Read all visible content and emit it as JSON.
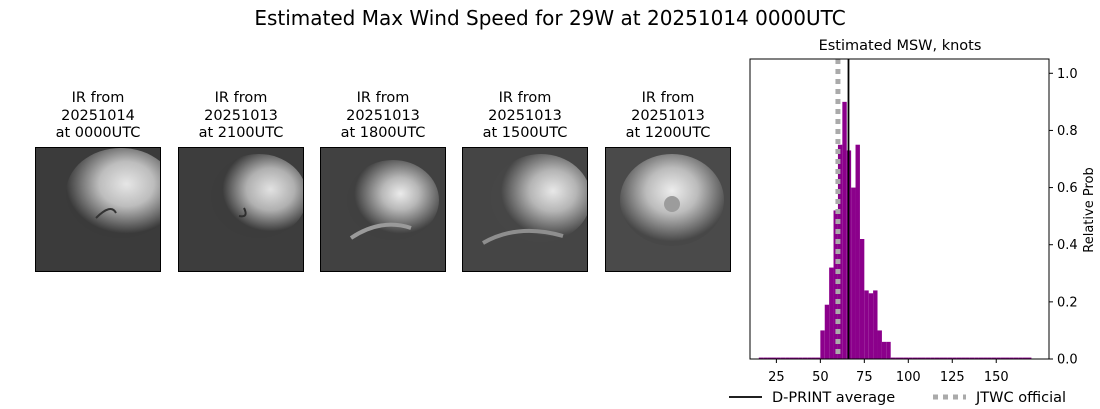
{
  "title": "Estimated Max Wind Speed for 29W at 20251014 0000UTC",
  "ir_panels": [
    {
      "line1": "IR from",
      "line2": "20251014",
      "line3": "at 0000UTC"
    },
    {
      "line1": "IR from",
      "line2": "20251013",
      "line3": "at 2100UTC"
    },
    {
      "line1": "IR from",
      "line2": "20251013",
      "line3": "at 1800UTC"
    },
    {
      "line1": "IR from",
      "line2": "20251013",
      "line3": "at 1500UTC"
    },
    {
      "line1": "IR from",
      "line2": "20251013",
      "line3": "at 1200UTC"
    }
  ],
  "chart_data": {
    "type": "bar",
    "title": "Estimated MSW, knots",
    "xlabel": "",
    "ylabel": "Relative Prob",
    "xlim": [
      10,
      180
    ],
    "ylim": [
      0,
      1.05
    ],
    "x_ticks": [
      25,
      50,
      75,
      100,
      125,
      150
    ],
    "y_ticks": [
      0.0,
      0.2,
      0.4,
      0.6,
      0.8,
      1.0
    ],
    "y_axis_side": "right",
    "bar_color": "#8b008b",
    "bin_width": 2.5,
    "bins": [
      {
        "x": 15,
        "value": 0.005
      },
      {
        "x": 17.5,
        "value": 0.005
      },
      {
        "x": 20,
        "value": 0.005
      },
      {
        "x": 22.5,
        "value": 0.005
      },
      {
        "x": 25,
        "value": 0.005
      },
      {
        "x": 27.5,
        "value": 0.005
      },
      {
        "x": 30,
        "value": 0.005
      },
      {
        "x": 32.5,
        "value": 0.005
      },
      {
        "x": 35,
        "value": 0.005
      },
      {
        "x": 37.5,
        "value": 0.005
      },
      {
        "x": 40,
        "value": 0.005
      },
      {
        "x": 42.5,
        "value": 0.005
      },
      {
        "x": 45,
        "value": 0.005
      },
      {
        "x": 47.5,
        "value": 0.005
      },
      {
        "x": 50,
        "value": 0.1
      },
      {
        "x": 52.5,
        "value": 0.19
      },
      {
        "x": 55,
        "value": 0.32
      },
      {
        "x": 57.5,
        "value": 0.52
      },
      {
        "x": 60,
        "value": 0.75
      },
      {
        "x": 62.5,
        "value": 0.9
      },
      {
        "x": 65,
        "value": 0.73
      },
      {
        "x": 67.5,
        "value": 0.6
      },
      {
        "x": 70,
        "value": 0.75
      },
      {
        "x": 72.5,
        "value": 0.42
      },
      {
        "x": 75,
        "value": 0.24
      },
      {
        "x": 77.5,
        "value": 0.23
      },
      {
        "x": 80,
        "value": 0.24
      },
      {
        "x": 82.5,
        "value": 0.1
      },
      {
        "x": 85,
        "value": 0.06
      },
      {
        "x": 87.5,
        "value": 0.06
      },
      {
        "x": 90,
        "value": 0.005
      },
      {
        "x": 92.5,
        "value": 0.005
      },
      {
        "x": 95,
        "value": 0.005
      },
      {
        "x": 97.5,
        "value": 0.005
      },
      {
        "x": 100,
        "value": 0.005
      },
      {
        "x": 102.5,
        "value": 0.005
      },
      {
        "x": 105,
        "value": 0.005
      },
      {
        "x": 107.5,
        "value": 0.005
      },
      {
        "x": 110,
        "value": 0.005
      },
      {
        "x": 112.5,
        "value": 0.005
      },
      {
        "x": 115,
        "value": 0.005
      },
      {
        "x": 117.5,
        "value": 0.005
      },
      {
        "x": 120,
        "value": 0.005
      },
      {
        "x": 122.5,
        "value": 0.005
      },
      {
        "x": 125,
        "value": 0.005
      },
      {
        "x": 127.5,
        "value": 0.005
      },
      {
        "x": 130,
        "value": 0.005
      },
      {
        "x": 132.5,
        "value": 0.005
      },
      {
        "x": 135,
        "value": 0.005
      },
      {
        "x": 137.5,
        "value": 0.005
      },
      {
        "x": 140,
        "value": 0.005
      },
      {
        "x": 142.5,
        "value": 0.005
      },
      {
        "x": 145,
        "value": 0.005
      },
      {
        "x": 147.5,
        "value": 0.005
      },
      {
        "x": 150,
        "value": 0.005
      },
      {
        "x": 152.5,
        "value": 0.005
      },
      {
        "x": 155,
        "value": 0.005
      },
      {
        "x": 157.5,
        "value": 0.005
      },
      {
        "x": 160,
        "value": 0.005
      },
      {
        "x": 162.5,
        "value": 0.005
      },
      {
        "x": 165,
        "value": 0.005
      },
      {
        "x": 167.5,
        "value": 0.005
      }
    ],
    "reference_lines": [
      {
        "name": "D-PRINT average",
        "x": 66,
        "color": "#000000",
        "style": "solid"
      },
      {
        "name": "JTWC official",
        "x": 60,
        "color": "#aaaaaa",
        "style": "dotted"
      }
    ],
    "legend": {
      "placement": "bottom",
      "entries": [
        "D-PRINT average",
        "JTWC official"
      ]
    }
  }
}
